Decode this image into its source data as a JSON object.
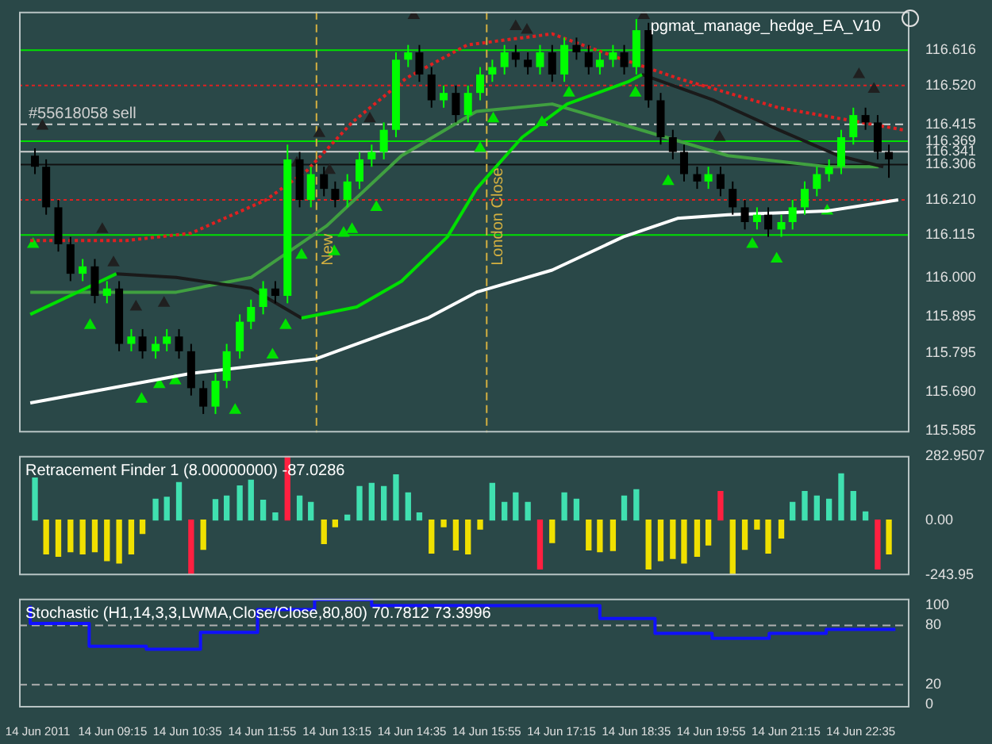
{
  "chart_data": [
    {
      "type": "candlestick",
      "title": "pgmat_manage_hedge_EA_V10",
      "tick_labels": "y",
      "xlim": [
        "2011-06-14T07:35",
        "2011-06-14T23:27"
      ],
      "ylim": [
        115.58,
        116.72
      ],
      "yticks": [
        116.616,
        {
          "value": 116.52,
          "label": "116.520"
        },
        116.415,
        116.369,
        116.341,
        116.306,
        {
          "value": 116.21,
          "label": "116.210"
        },
        116.115,
        {
          "value": 116,
          "label": "116.000"
        },
        115.895,
        115.795,
        {
          "value": 115.69,
          "label": "115.690"
        },
        115.585
      ],
      "x": [
        "2011-06-14T07:52",
        "2011-06-14T08:04",
        "2011-06-14T08:17",
        "2011-06-14T08:30",
        "2011-06-14T08:43",
        "2011-06-14T08:56",
        "2011-06-14T09:09",
        "2011-06-14T09:22",
        "2011-06-14T09:35",
        "2011-06-14T09:47",
        "2011-06-14T10:01",
        "2011-06-14T10:13",
        "2011-06-14T10:26",
        "2011-06-14T10:39",
        "2011-06-14T10:52",
        "2011-06-14T11:05",
        "2011-06-14T11:17",
        "2011-06-14T11:31",
        "2011-06-14T11:43",
        "2011-06-14T11:56",
        "2011-06-14T12:09",
        "2011-06-14T12:22",
        "2011-06-14T12:35",
        "2011-06-14T12:47",
        "2011-06-14T13:01",
        "2011-06-14T13:13",
        "2011-06-14T13:26",
        "2011-06-14T13:39",
        "2011-06-14T13:52",
        "2011-06-14T14:05",
        "2011-06-14T14:18",
        "2011-06-14T14:31",
        "2011-06-14T14:43",
        "2011-06-14T14:56",
        "2011-06-14T15:09",
        "2011-06-14T15:22",
        "2011-06-14T15:35",
        "2011-06-14T15:48",
        "2011-06-14T16:01",
        "2011-06-14T16:14",
        "2011-06-14T16:26",
        "2011-06-14T16:39",
        "2011-06-14T16:52",
        "2011-06-14T17:05",
        "2011-06-14T17:18",
        "2011-06-14T17:31",
        "2011-06-14T17:44",
        "2011-06-14T17:56",
        "2011-06-14T18:10",
        "2011-06-14T18:22",
        "2011-06-14T18:35",
        "2011-06-14T18:48",
        "2011-06-14T19:01",
        "2011-06-14T19:14",
        "2011-06-14T19:26",
        "2011-06-14T19:40",
        "2011-06-14T19:52",
        "2011-06-14T20:05",
        "2011-06-14T20:18",
        "2011-06-14T20:31",
        "2011-06-14T20:44",
        "2011-06-14T20:56",
        "2011-06-14T21:10",
        "2011-06-14T21:22",
        "2011-06-14T21:35",
        "2011-06-14T21:48",
        "2011-06-14T22:01",
        "2011-06-14T22:14",
        "2011-06-14T22:27",
        "2011-06-14T22:40",
        "2011-06-14T22:53",
        "2011-06-14T23:05"
      ],
      "ohlc": [
        [
          116.33,
          116.35,
          116.28,
          116.3
        ],
        [
          116.3,
          116.32,
          116.17,
          116.19
        ],
        [
          116.19,
          116.21,
          116.07,
          116.09
        ],
        [
          116.09,
          116.11,
          115.99,
          116.01
        ],
        [
          116.01,
          116.05,
          115.99,
          116.03
        ],
        [
          116.03,
          116.05,
          115.93,
          115.95
        ],
        [
          115.95,
          115.99,
          115.93,
          115.97
        ],
        [
          115.97,
          115.99,
          115.8,
          115.82
        ],
        [
          115.82,
          115.86,
          115.8,
          115.84
        ],
        [
          115.84,
          115.86,
          115.78,
          115.8
        ],
        [
          115.8,
          115.84,
          115.78,
          115.82
        ],
        [
          115.82,
          115.86,
          115.8,
          115.84
        ],
        [
          115.84,
          115.86,
          115.78,
          115.8
        ],
        [
          115.8,
          115.82,
          115.68,
          115.7
        ],
        [
          115.7,
          115.72,
          115.63,
          115.65
        ],
        [
          115.65,
          115.74,
          115.63,
          115.72
        ],
        [
          115.72,
          115.82,
          115.7,
          115.8
        ],
        [
          115.8,
          115.9,
          115.78,
          115.88
        ],
        [
          115.88,
          115.94,
          115.86,
          115.92
        ],
        [
          115.92,
          115.99,
          115.9,
          115.97
        ],
        [
          115.97,
          115.99,
          115.93,
          115.95
        ],
        [
          115.95,
          116.36,
          115.93,
          116.32
        ],
        [
          116.32,
          116.34,
          116.19,
          116.21
        ],
        [
          116.21,
          116.3,
          116.19,
          116.28
        ],
        [
          116.28,
          116.3,
          116.22,
          116.24
        ],
        [
          116.24,
          116.26,
          116.19,
          116.21
        ],
        [
          116.21,
          116.28,
          116.19,
          116.26
        ],
        [
          116.26,
          116.34,
          116.24,
          116.32
        ],
        [
          116.32,
          116.36,
          116.3,
          116.34
        ],
        [
          116.34,
          116.42,
          116.32,
          116.4
        ],
        [
          116.4,
          116.61,
          116.38,
          116.59
        ],
        [
          116.59,
          116.63,
          116.57,
          116.61
        ],
        [
          116.61,
          116.63,
          116.53,
          116.55
        ],
        [
          116.55,
          116.57,
          116.46,
          116.48
        ],
        [
          116.48,
          116.52,
          116.46,
          116.5
        ],
        [
          116.5,
          116.52,
          116.42,
          116.44
        ],
        [
          116.44,
          116.52,
          116.42,
          116.5
        ],
        [
          116.5,
          116.57,
          116.48,
          116.55
        ],
        [
          116.55,
          116.59,
          116.53,
          116.57
        ],
        [
          116.57,
          116.63,
          116.55,
          116.61
        ],
        [
          116.61,
          116.63,
          116.57,
          116.59
        ],
        [
          116.59,
          116.61,
          116.55,
          116.57
        ],
        [
          116.57,
          116.63,
          116.55,
          116.61
        ],
        [
          116.61,
          116.63,
          116.53,
          116.55
        ],
        [
          116.55,
          116.65,
          116.53,
          116.63
        ],
        [
          116.63,
          116.65,
          116.59,
          116.61
        ],
        [
          116.61,
          116.63,
          116.55,
          116.57
        ],
        [
          116.57,
          116.61,
          116.55,
          116.59
        ],
        [
          116.59,
          116.63,
          116.57,
          116.61
        ],
        [
          116.61,
          116.63,
          116.55,
          116.57
        ],
        [
          116.57,
          116.7,
          116.55,
          116.67
        ],
        [
          116.67,
          116.69,
          116.46,
          116.48
        ],
        [
          116.48,
          116.5,
          116.36,
          116.38
        ],
        [
          116.38,
          116.4,
          116.32,
          116.34
        ],
        [
          116.34,
          116.36,
          116.26,
          116.28
        ],
        [
          116.28,
          116.3,
          116.24,
          116.26
        ],
        [
          116.26,
          116.3,
          116.24,
          116.28
        ],
        [
          116.28,
          116.3,
          116.22,
          116.24
        ],
        [
          116.24,
          116.26,
          116.17,
          116.19
        ],
        [
          116.19,
          116.21,
          116.13,
          116.15
        ],
        [
          116.15,
          116.19,
          116.13,
          116.17
        ],
        [
          116.17,
          116.19,
          116.11,
          116.13
        ],
        [
          116.13,
          116.17,
          116.11,
          116.15
        ],
        [
          116.15,
          116.21,
          116.13,
          116.19
        ],
        [
          116.19,
          116.26,
          116.17,
          116.24
        ],
        [
          116.24,
          116.3,
          116.22,
          116.28
        ],
        [
          116.28,
          116.32,
          116.26,
          116.3
        ],
        [
          116.3,
          116.4,
          116.28,
          116.38
        ],
        [
          116.38,
          116.46,
          116.36,
          116.44
        ],
        [
          116.44,
          116.46,
          116.4,
          116.42
        ],
        [
          116.42,
          116.44,
          116.32,
          116.34
        ],
        [
          116.34,
          116.36,
          116.27,
          116.32
        ]
      ],
      "colors": [
        "#000000",
        "#000000",
        "#000000",
        "#000000",
        "#00ff00",
        "#000000",
        "#00ff00",
        "#000000",
        "#00ff00",
        "#000000",
        "#00ff00",
        "#00ff00",
        "#000000",
        "#000000",
        "#000000",
        "#00ff00",
        "#00ff00",
        "#00ff00",
        "#00ff00",
        "#00ff00",
        "#000000",
        "#00ff00",
        "#000000",
        "#00ff00",
        "#000000",
        "#000000",
        "#00ff00",
        "#00ff00",
        "#00ff00",
        "#00ff00",
        "#00ff00",
        "#00ff00",
        "#000000",
        "#000000",
        "#00ff00",
        "#000000",
        "#00ff00",
        "#00ff00",
        "#00ff00",
        "#00ff00",
        "#000000",
        "#000000",
        "#00ff00",
        "#000000",
        "#00ff00",
        "#000000",
        "#000000",
        "#00ff00",
        "#00ff00",
        "#000000",
        "#00ff00",
        "#000000",
        "#000000",
        "#000000",
        "#000000",
        "#000000",
        "#00ff00",
        "#000000",
        "#000000",
        "#000000",
        "#00ff00",
        "#000000",
        "#00ff00",
        "#00ff00",
        "#00ff00",
        "#00ff00",
        "#00ff00",
        "#00ff00",
        "#00ff00",
        "#000000",
        "#000000",
        "#000000"
      ],
      "series": [
        {
          "type": "line",
          "color": "#ffffff",
          "x": [
            "2011-06-14T07:47",
            "2011-06-14T10:39",
            "2011-06-14T12:53",
            "2011-06-14T14:52",
            "2011-06-14T15:44",
            "2011-06-14T17:05",
            "2011-06-14T18:21",
            "2011-06-14T19:19",
            "2011-06-14T20:13",
            "2011-06-14T21:59",
            "2011-06-14T23:15"
          ],
          "values": [
            115.66,
            115.74,
            115.78,
            115.89,
            115.96,
            116.02,
            116.11,
            116.16,
            116.17,
            116.18,
            116.21
          ]
        },
        {
          "type": "line",
          "color": "#00e000",
          "x": [
            "2011-06-14T07:47",
            "2011-06-14T08:46",
            "2011-06-14T09:19",
            "2011-06-14T10:55",
            "2011-06-14T12:37",
            "2011-06-14T13:36",
            "2011-06-14T14:24",
            "2011-06-14T15:13",
            "2011-06-14T15:44",
            "2011-06-14T16:33",
            "2011-06-14T17:21",
            "2011-06-14T18:26",
            "2011-06-14T18:41"
          ],
          "values": [
            115.9,
            115.97,
            116.01,
            null,
            115.89,
            115.92,
            115.99,
            116.11,
            116.24,
            116.38,
            116.47,
            116.53,
            116.55
          ]
        },
        {
          "type": "line",
          "color": "#1a1a1a",
          "x": [
            "2011-06-14T09:19",
            "2011-06-14T10:23",
            "2011-06-14T11:43",
            "2011-06-14T12:37",
            "2011-06-14T15:00",
            "2011-06-14T18:41",
            "2011-06-14T19:58",
            "2011-06-14T21:07",
            "2011-06-14T22:11",
            "2011-06-14T22:59"
          ],
          "values": [
            116.01,
            116.0,
            115.97,
            115.89,
            null,
            116.55,
            116.48,
            116.4,
            116.33,
            116.3
          ]
        },
        {
          "type": "line",
          "color": "#e02020",
          "line_style": "dotted",
          "x": [
            "2011-06-14T07:47",
            "2011-06-14T09:30",
            "2011-06-14T10:39",
            "2011-06-14T11:59",
            "2011-06-14T12:43",
            "2011-06-14T13:31",
            "2011-06-14T14:29",
            "2011-06-14T15:34",
            "2011-06-14T17:05",
            "2011-06-14T18:10",
            "2011-06-14T19:19",
            "2011-06-14T21:07",
            "2011-06-14T23:20"
          ],
          "values": [
            116.1,
            116.1,
            116.12,
            116.21,
            116.29,
            116.42,
            116.54,
            116.63,
            116.66,
            116.6,
            116.54,
            116.46,
            116.4
          ]
        },
        {
          "type": "line",
          "color": "#40a040",
          "x": [
            "2011-06-14T07:47",
            "2011-06-14T10:23",
            "2011-06-14T11:43",
            "2011-06-14T13:04",
            "2011-06-14T14:24",
            "2011-06-14T15:44",
            "2011-06-14T17:05",
            "2011-06-14T18:26",
            "2011-06-14T20:13",
            "2011-06-14T21:59",
            "2011-06-14T22:54"
          ],
          "values": [
            115.96,
            115.96,
            116.0,
            116.14,
            116.33,
            116.45,
            116.47,
            116.41,
            116.33,
            116.3,
            116.3
          ]
        },
        {
          "type": "scatter",
          "marker": "triangle",
          "color": "#00e000",
          "x": [
            "2011-06-14T07:50",
            "2011-06-14T08:51",
            "2011-06-14T09:46",
            "2011-06-14T10:05",
            "2011-06-14T10:22",
            "2011-06-14T11:26",
            "2011-06-14T12:06",
            "2011-06-14T12:20",
            "2011-06-14T12:37",
            "2011-06-14T13:12",
            "2011-06-14T13:22",
            "2011-06-14T13:31",
            "2011-06-14T13:57",
            "2011-06-14T15:48",
            "2011-06-14T16:02",
            "2011-06-14T16:54",
            "2011-06-14T17:23",
            "2011-06-14T18:34",
            "2011-06-14T19:09",
            "2011-06-14T20:39",
            "2011-06-14T21:05",
            "2011-06-14T21:59"
          ],
          "values": [
            116.09,
            115.87,
            115.67,
            115.71,
            115.72,
            115.64,
            115.79,
            115.87,
            116.06,
            116.07,
            116.12,
            116.13,
            116.19,
            116.35,
            116.43,
            116.42,
            116.5,
            116.5,
            116.26,
            116.09,
            116.05,
            116.18
          ]
        },
        {
          "type": "scatter",
          "marker": "triangle",
          "color": "#202020",
          "x": [
            "2011-06-14T08:00",
            "2011-06-14T09:04",
            "2011-06-14T09:16",
            "2011-06-14T09:40",
            "2011-06-14T10:10",
            "2011-06-14T12:32",
            "2011-06-14T12:56",
            "2011-06-14T13:07",
            "2011-06-14T13:50",
            "2011-06-14T14:37",
            "2011-06-14T16:26",
            "2011-06-14T16:38",
            "2011-06-14T18:43",
            "2011-06-14T20:04",
            "2011-06-14T22:33",
            "2011-06-14T22:49"
          ],
          "values": [
            116.41,
            116.13,
            116.04,
            115.92,
            115.93,
            116.31,
            116.39,
            116.29,
            116.43,
            116.71,
            116.68,
            116.67,
            116.71,
            116.38,
            116.55,
            116.51
          ]
        }
      ],
      "ref_lines": [
        {
          "axis": "y",
          "value": 116.616,
          "color": "#00e000"
        },
        {
          "axis": "y",
          "value": 116.52,
          "color": "#e02020",
          "line_style": "dotted"
        },
        {
          "axis": "y",
          "value": 116.415,
          "color": "#d0d0d0",
          "line_style": "dashed",
          "label": "#55618058 sell"
        },
        {
          "axis": "y",
          "value": 116.369,
          "color": "#00e000"
        },
        {
          "axis": "y",
          "value": 116.341,
          "color": "#d0d0d0"
        },
        {
          "axis": "y",
          "value": 116.306,
          "color": "#101010"
        },
        {
          "axis": "y",
          "value": 116.21,
          "color": "#e02020",
          "line_style": "dotted"
        },
        {
          "axis": "y",
          "value": 116.115,
          "color": "#00e000"
        },
        {
          "axis": "x",
          "value": "2011-06-14T12:53",
          "color": "#d4b040",
          "line_style": "dashed",
          "label": "New"
        },
        {
          "axis": "x",
          "value": "2011-06-14T15:55",
          "color": "#d4b040",
          "line_style": "dashed",
          "label": "London Close"
        }
      ]
    },
    {
      "type": "bar",
      "title": "Retracement Finder 1 (8.00000000) -87.0286",
      "tick_labels": "y",
      "xlim": [
        "2011-06-14T07:35",
        "2011-06-14T23:27"
      ],
      "ylim": [
        -243.95,
        282.9507
      ],
      "yticks": [
        282.9507,
        {
          "value": 0,
          "label": "0.00"
        },
        -243.95
      ],
      "x": [
        "2011-06-14T07:52",
        "2011-06-14T08:04",
        "2011-06-14T08:17",
        "2011-06-14T08:30",
        "2011-06-14T08:43",
        "2011-06-14T08:56",
        "2011-06-14T09:09",
        "2011-06-14T09:22",
        "2011-06-14T09:35",
        "2011-06-14T09:47",
        "2011-06-14T10:01",
        "2011-06-14T10:13",
        "2011-06-14T10:26",
        "2011-06-14T10:39",
        "2011-06-14T10:52",
        "2011-06-14T11:05",
        "2011-06-14T11:17",
        "2011-06-14T11:31",
        "2011-06-14T11:43",
        "2011-06-14T11:56",
        "2011-06-14T12:09",
        "2011-06-14T12:22",
        "2011-06-14T12:35",
        "2011-06-14T12:47",
        "2011-06-14T13:01",
        "2011-06-14T13:13",
        "2011-06-14T13:26",
        "2011-06-14T13:39",
        "2011-06-14T13:52",
        "2011-06-14T14:05",
        "2011-06-14T14:18",
        "2011-06-14T14:31",
        "2011-06-14T14:43",
        "2011-06-14T14:56",
        "2011-06-14T15:09",
        "2011-06-14T15:22",
        "2011-06-14T15:35",
        "2011-06-14T15:48",
        "2011-06-14T16:01",
        "2011-06-14T16:14",
        "2011-06-14T16:26",
        "2011-06-14T16:39",
        "2011-06-14T16:52",
        "2011-06-14T17:05",
        "2011-06-14T17:18",
        "2011-06-14T17:31",
        "2011-06-14T17:44",
        "2011-06-14T17:56",
        "2011-06-14T18:10",
        "2011-06-14T18:22",
        "2011-06-14T18:35",
        "2011-06-14T18:48",
        "2011-06-14T19:01",
        "2011-06-14T19:14",
        "2011-06-14T19:26",
        "2011-06-14T19:40",
        "2011-06-14T19:52",
        "2011-06-14T20:05",
        "2011-06-14T20:18",
        "2011-06-14T20:31",
        "2011-06-14T20:44",
        "2011-06-14T20:56",
        "2011-06-14T21:10",
        "2011-06-14T21:22",
        "2011-06-14T21:35",
        "2011-06-14T21:48",
        "2011-06-14T22:01",
        "2011-06-14T22:14",
        "2011-06-14T22:27",
        "2011-06-14T22:40",
        "2011-06-14T22:53",
        "2011-06-14T23:05"
      ],
      "values": [
        185,
        -150,
        -160,
        -140,
        -150,
        -140,
        -180,
        -190,
        -150,
        -60,
        92,
        100,
        165,
        -240,
        -130,
        90,
        106,
        150,
        176,
        87,
        31,
        282,
        106,
        78,
        -104,
        -30,
        22,
        148,
        162,
        148,
        199,
        120,
        31,
        -146,
        -30,
        -132,
        -150,
        -40,
        162,
        78,
        120,
        78,
        -216,
        -100,
        120,
        92,
        -132,
        -140,
        -135,
        106,
        134,
        -216,
        -180,
        -170,
        -190,
        -160,
        -110,
        126,
        -240,
        -130,
        -40,
        -146,
        -80,
        78,
        126,
        106,
        92,
        204,
        126,
        36,
        -216,
        -150
      ],
      "colors": [
        "#40e0b0",
        "#f0e000",
        "#f0e000",
        "#f0e000",
        "#f0e000",
        "#f0e000",
        "#f0e000",
        "#f0e000",
        "#f0e000",
        "#f0e000",
        "#40e0b0",
        "#40e0b0",
        "#40e0b0",
        "#ff2040",
        "#f0e000",
        "#40e0b0",
        "#40e0b0",
        "#40e0b0",
        "#40e0b0",
        "#40e0b0",
        "#40e0b0",
        "#ff2040",
        "#40e0b0",
        "#40e0b0",
        "#f0e000",
        "#f0e000",
        "#40e0b0",
        "#40e0b0",
        "#40e0b0",
        "#40e0b0",
        "#40e0b0",
        "#40e0b0",
        "#40e0b0",
        "#f0e000",
        "#f0e000",
        "#f0e000",
        "#f0e000",
        "#f0e000",
        "#40e0b0",
        "#40e0b0",
        "#40e0b0",
        "#40e0b0",
        "#ff2040",
        "#f0e000",
        "#40e0b0",
        "#40e0b0",
        "#f0e000",
        "#f0e000",
        "#f0e000",
        "#40e0b0",
        "#40e0b0",
        "#f0e000",
        "#f0e000",
        "#f0e000",
        "#f0e000",
        "#f0e000",
        "#f0e000",
        "#ff2040",
        "#f0e000",
        "#f0e000",
        "#f0e000",
        "#f0e000",
        "#f0e000",
        "#40e0b0",
        "#40e0b0",
        "#40e0b0",
        "#40e0b0",
        "#40e0b0",
        "#40e0b0",
        "#40e0b0",
        "#ff2040",
        "#f0e000"
      ]
    },
    {
      "type": "step",
      "title": "Stochastic (H1,14,3,3,LWMA,Close/Close,80,80) 70.7812 73.3996",
      "xlim": [
        "2011-06-14T07:35",
        "2011-06-14T23:27"
      ],
      "ylim": [
        -3,
        107
      ],
      "yticks": [
        100,
        80,
        20,
        0
      ],
      "xticks": [
        {
          "value": "2011-06-14T07:55",
          "label": "14 Jun 2011"
        },
        {
          "value": "2011-06-14T09:15",
          "label": "14 Jun 09:15"
        },
        {
          "value": "2011-06-14T10:35",
          "label": "14 Jun 10:35"
        },
        {
          "value": "2011-06-14T11:55",
          "label": "14 Jun 11:55"
        },
        {
          "value": "2011-06-14T13:15",
          "label": "14 Jun 13:15"
        },
        {
          "value": "2011-06-14T14:35",
          "label": "14 Jun 14:35"
        },
        {
          "value": "2011-06-14T15:55",
          "label": "14 Jun 15:55"
        },
        {
          "value": "2011-06-14T17:15",
          "label": "14 Jun 17:15"
        },
        {
          "value": "2011-06-14T18:35",
          "label": "14 Jun 18:35"
        },
        {
          "value": "2011-06-14T19:55",
          "label": "14 Jun 19:55"
        },
        {
          "value": "2011-06-14T21:15",
          "label": "14 Jun 21:15"
        },
        {
          "value": "2011-06-14T22:35",
          "label": "14 Jun 22:35"
        }
      ],
      "series": [
        {
          "color": "#1010ff",
          "x": [
            "2011-06-14T07:47",
            "2011-06-14T08:50",
            "2011-06-14T09:51",
            "2011-06-14T10:49",
            "2011-06-14T11:50",
            "2011-06-14T12:51",
            "2011-06-14T13:52",
            "2011-06-14T17:56",
            "2011-06-14T18:55",
            "2011-06-14T19:56",
            "2011-06-14T20:57",
            "2011-06-14T21:58",
            "2011-06-14T22:56",
            "2011-06-14T23:12"
          ],
          "values": [
            100,
            82,
            59,
            56,
            73,
            96,
            106,
            100,
            87,
            72,
            67,
            72,
            76,
            76
          ]
        }
      ],
      "ref_lines": [
        {
          "axis": "y",
          "value": 80,
          "color": "#b0b0b0",
          "line_style": "dashed"
        },
        {
          "axis": "y",
          "value": 20,
          "color": "#b0b0b0",
          "line_style": "dashed"
        }
      ]
    }
  ]
}
